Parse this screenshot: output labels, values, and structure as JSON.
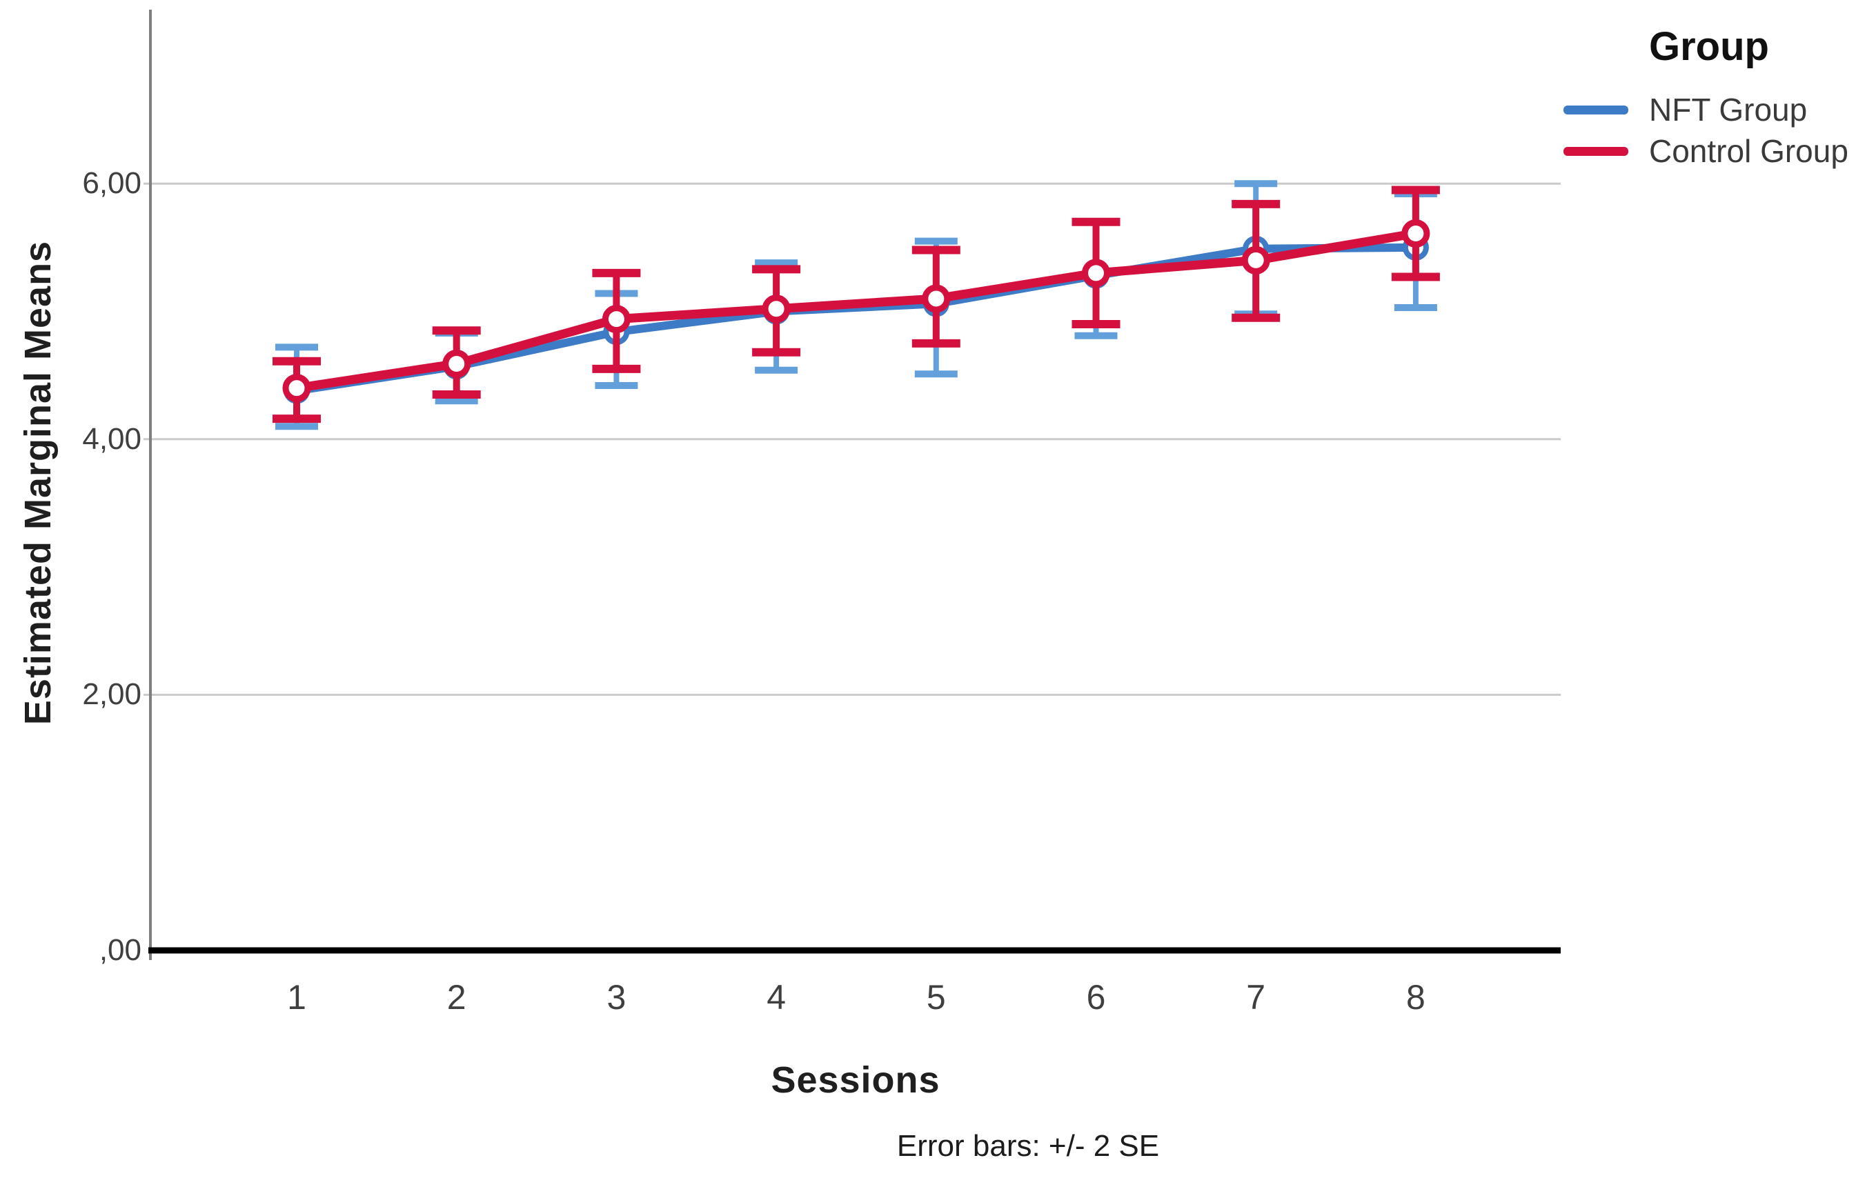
{
  "chart_data": {
    "type": "line",
    "title": "",
    "xlabel": "Sessions",
    "ylabel": "Estimated Marginal Means",
    "footnote": "Error bars: +/- 2 SE",
    "x": [
      1,
      2,
      3,
      4,
      5,
      6,
      7,
      8
    ],
    "x_tick_labels": [
      "1",
      "2",
      "3",
      "4",
      "5",
      "6",
      "7",
      "8"
    ],
    "y_ticks": [
      {
        "value": 0,
        "label": ",00"
      },
      {
        "value": 2,
        "label": "2,00"
      },
      {
        "value": 4,
        "label": "4,00"
      },
      {
        "value": 6,
        "label": "6,00"
      }
    ],
    "ylim": [
      0,
      7.35
    ],
    "grid": "horizontal",
    "legend": {
      "title": "Group",
      "position": "top-right-outside"
    },
    "series": [
      {
        "name": "NFT Group",
        "color": "#3D7BC6",
        "error_color": "#63A0DB",
        "means": [
          4.38,
          4.57,
          4.84,
          5.0,
          5.06,
          5.28,
          5.49,
          5.5
        ],
        "upper": [
          4.72,
          4.83,
          5.14,
          5.38,
          5.55,
          5.7,
          6.0,
          5.92
        ],
        "lower": [
          4.1,
          4.3,
          4.42,
          4.54,
          4.51,
          4.81,
          4.98,
          5.03
        ]
      },
      {
        "name": "Control Group",
        "color": "#D4103F",
        "error_color": "#D4103F",
        "means": [
          4.4,
          4.59,
          4.94,
          5.02,
          5.1,
          5.3,
          5.4,
          5.61
        ],
        "upper": [
          4.61,
          4.85,
          5.3,
          5.33,
          5.48,
          5.7,
          5.84,
          5.95
        ],
        "lower": [
          4.16,
          4.35,
          4.55,
          4.68,
          4.75,
          4.9,
          4.95,
          5.27
        ]
      }
    ]
  },
  "colors": {
    "gridline": "#CACACA",
    "y_axis": "#7E7E7E",
    "x_axis": "#000000"
  }
}
